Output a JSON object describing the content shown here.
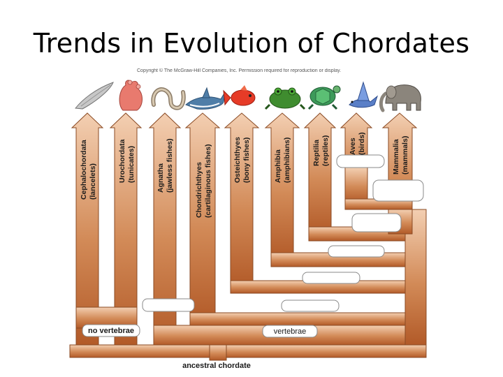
{
  "slide": {
    "title": "Trends in Evolution of Chordates",
    "copyright": "Copyright © The McGraw-Hill Companies, Inc. Permission required for reproduction or display."
  },
  "groups": [
    {
      "line1": "Cephalochordata",
      "line2": "(lancelets)",
      "icon": "lancelet-icon"
    },
    {
      "line1": "Urochordata",
      "line2": "(tunicates)",
      "icon": "tunicate-icon"
    },
    {
      "line1": "Agnatha",
      "line2": "(jawless fishes)",
      "icon": "lamprey-icon"
    },
    {
      "line1": "Chondrichthyes",
      "line2": "(cartilaginous fishes)",
      "icon": "shark-icon"
    },
    {
      "line1": "Osteichthyes",
      "line2": "(bony fishes)",
      "icon": "bony-fish-icon"
    },
    {
      "line1": "Amphibia",
      "line2": "(amphibians)",
      "icon": "frog-icon"
    },
    {
      "line1": "Reptilia",
      "line2": "(reptiles)",
      "icon": "turtle-icon"
    },
    {
      "line1": "Aves",
      "line2": "(birds)",
      "icon": "bird-icon"
    },
    {
      "line1": "Mammalia",
      "line2": "(mammals)",
      "icon": "elephant-icon"
    }
  ],
  "labels": {
    "no_vertebrae": "no vertebrae",
    "vertebrae": "vertebrae",
    "ancestral": "ancestral chordate"
  },
  "colors": {
    "branch_light": "#f1c7a6",
    "branch_dark": "#b8602e"
  }
}
